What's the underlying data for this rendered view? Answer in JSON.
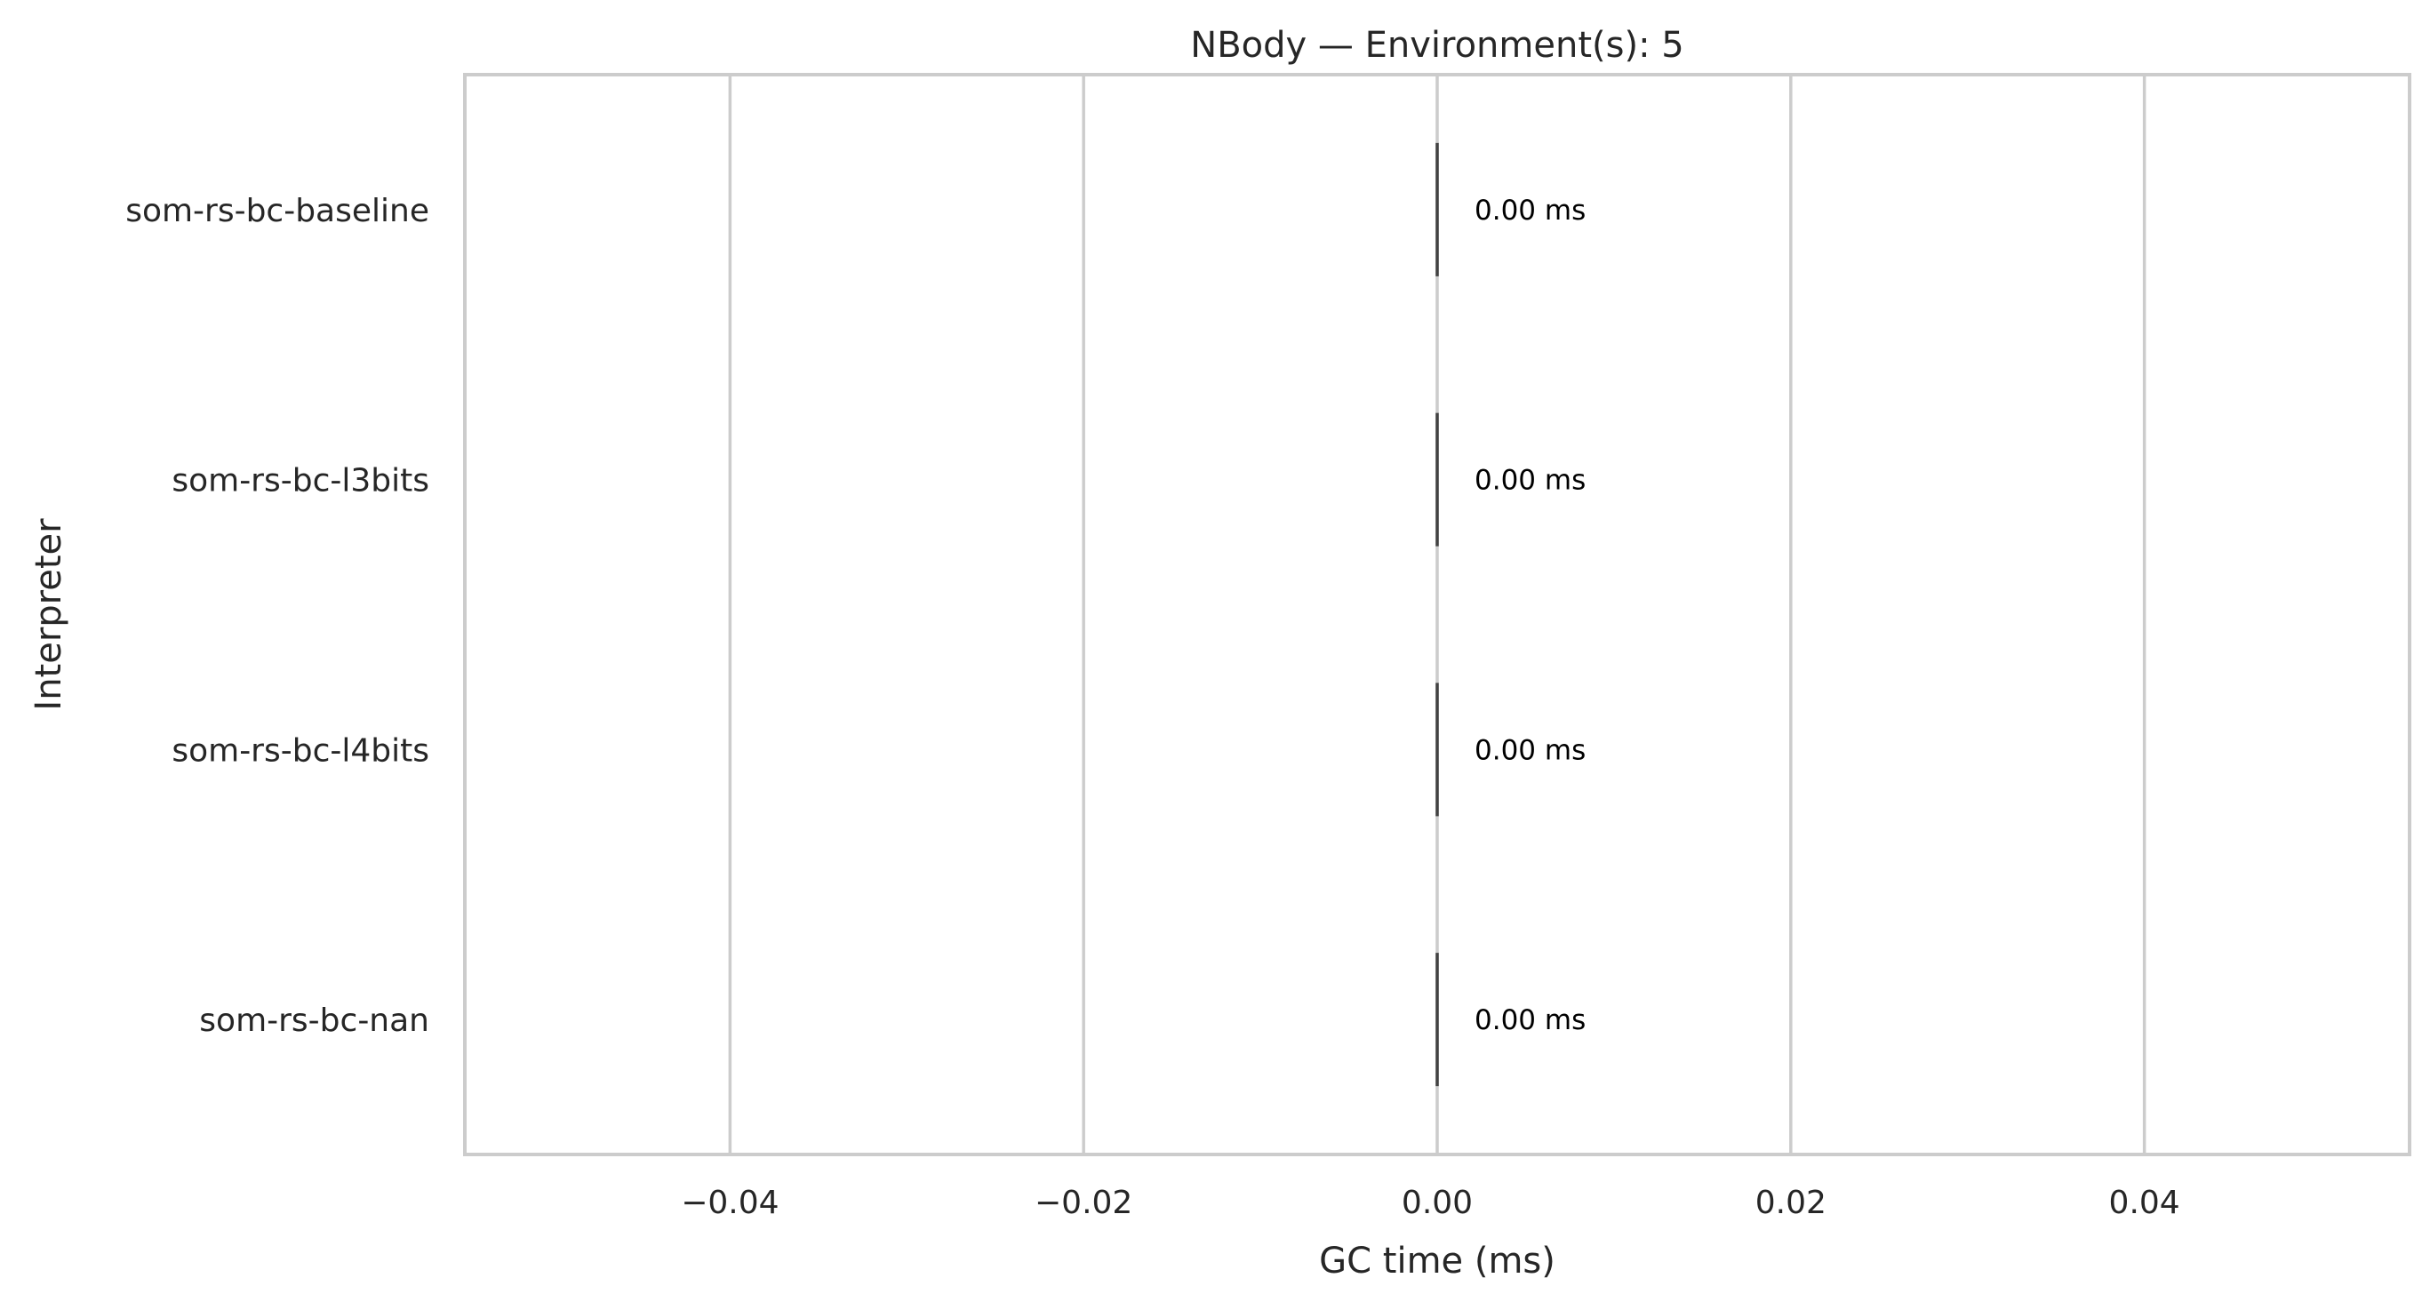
{
  "chart_data": {
    "type": "bar",
    "orientation": "horizontal",
    "title": "NBody — Environment(s): 5",
    "xlabel": "GC time (ms)",
    "ylabel": "Interpreter",
    "categories": [
      "som-rs-bc-baseline",
      "som-rs-bc-l3bits",
      "som-rs-bc-l4bits",
      "som-rs-bc-nan"
    ],
    "values": [
      0.0,
      0.0,
      0.0,
      0.0
    ],
    "error": [
      0.0,
      0.0,
      0.0,
      0.0
    ],
    "data_labels": [
      "0.00 ms",
      "0.00 ms",
      "0.00 ms",
      "0.00 ms"
    ],
    "xlim": [
      -0.055,
      0.055
    ],
    "xticks": [
      -0.04,
      -0.02,
      0.0,
      0.02,
      0.04
    ],
    "xtick_labels": [
      "−0.04",
      "−0.02",
      "0.00",
      "0.02",
      "0.04"
    ],
    "grid": "vertical",
    "legend": "none",
    "colors": {
      "grid": "#cccccc",
      "spine": "#cccccc",
      "errorbar": "#424242",
      "text": "#262626",
      "data_label": "#000000"
    }
  }
}
